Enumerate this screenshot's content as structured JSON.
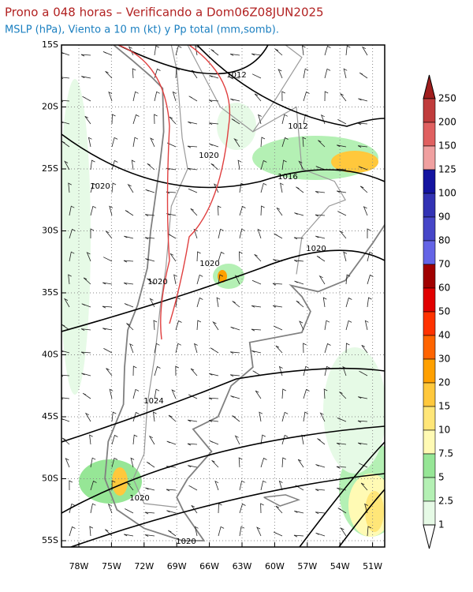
{
  "header": {
    "title": "Prono a 048 horas – Verificando a Dom06Z08JUN2025",
    "subtitle": "MSLP (hPa), Viento a 10 m (kt) y Pp total (mm,somb)."
  },
  "map": {
    "lat_labels": [
      "15S",
      "20S",
      "25S",
      "30S",
      "35S",
      "40S",
      "45S",
      "50S",
      "55S"
    ],
    "lon_labels": [
      "78W",
      "75W",
      "72W",
      "69W",
      "66W",
      "63W",
      "60W",
      "57W",
      "54W",
      "51W"
    ],
    "isobar_labels": [
      "1012",
      "1012",
      "1020",
      "1016",
      "1020",
      "1020",
      "1020",
      "1020",
      "1024",
      "1020",
      "1020"
    ]
  },
  "colorbar": {
    "labels": [
      "250",
      "200",
      "150",
      "125",
      "100",
      "90",
      "80",
      "70",
      "60",
      "50",
      "40",
      "30",
      "20",
      "15",
      "10",
      "7.5",
      "5",
      "2.5",
      "1"
    ],
    "colors": [
      "#a01e1e",
      "#c03c3c",
      "#e06060",
      "#f0a0a0",
      "#1414a0",
      "#3232b4",
      "#4646c8",
      "#6464e6",
      "#a00000",
      "#e10000",
      "#ff3200",
      "#ff6400",
      "#ffa000",
      "#ffc83c",
      "#ffe678",
      "#fffab4",
      "#96e696",
      "#b4f0b4",
      "#e6fae6",
      "#ffffff"
    ]
  }
}
